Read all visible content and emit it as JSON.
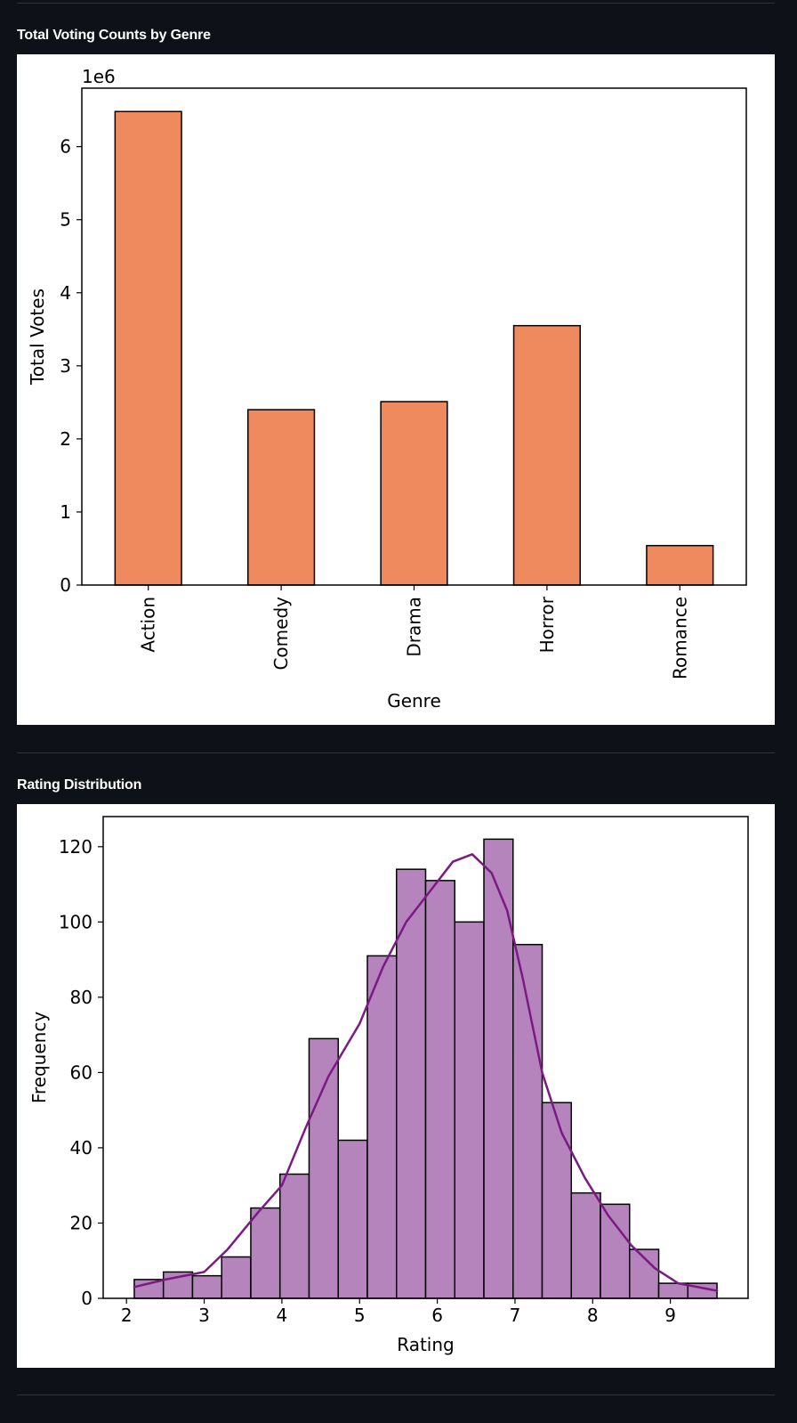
{
  "sections": [
    {
      "title": "Total Voting Counts by Genre"
    },
    {
      "title": "Rating Distribution"
    }
  ],
  "chart_data": [
    {
      "type": "bar",
      "categories": [
        "Action",
        "Comedy",
        "Drama",
        "Horror",
        "Romance"
      ],
      "values": [
        6480000,
        2400000,
        2510000,
        3550000,
        540000
      ],
      "xlabel": "Genre",
      "ylabel": "Total Votes",
      "offset_label": "1e6",
      "scale": 1000000,
      "ylim": [
        0,
        6.8
      ],
      "yticks": [
        0,
        1,
        2,
        3,
        4,
        5,
        6
      ],
      "color": "#ef8a5e",
      "grid": false
    },
    {
      "type": "bar",
      "bin_edges": [
        2.1,
        2.475,
        2.85,
        3.225,
        3.6,
        3.975,
        4.35,
        4.725,
        5.1,
        5.475,
        5.85,
        6.225,
        6.6,
        6.975,
        7.35,
        7.725,
        8.1,
        8.475,
        8.85,
        9.225,
        9.6
      ],
      "counts": [
        5,
        7,
        6,
        11,
        24,
        33,
        69,
        42,
        91,
        114,
        111,
        100,
        122,
        94,
        52,
        28,
        25,
        13,
        4,
        4
      ],
      "kde": {
        "x": [
          2.1,
          2.5,
          3.0,
          3.3,
          3.7,
          4.0,
          4.3,
          4.6,
          5.0,
          5.3,
          5.6,
          5.9,
          6.2,
          6.45,
          6.7,
          6.9,
          7.1,
          7.35,
          7.6,
          7.9,
          8.2,
          8.5,
          8.8,
          9.1,
          9.6
        ],
        "y": [
          3,
          5,
          7,
          13,
          23,
          30,
          45,
          59,
          73,
          88,
          100,
          108,
          116,
          118,
          113,
          103,
          85,
          60,
          44,
          32,
          22,
          14,
          8,
          4,
          2
        ]
      },
      "xlabel": "Rating",
      "ylabel": "Frequency",
      "xlim": [
        1.7,
        10.0
      ],
      "ylim": [
        0,
        128
      ],
      "xticks": [
        2,
        3,
        4,
        5,
        6,
        7,
        8,
        9
      ],
      "yticks": [
        0,
        20,
        40,
        60,
        80,
        100,
        120
      ],
      "bar_color": "#b584bd",
      "line_color": "#7b1a82",
      "grid": false
    }
  ]
}
